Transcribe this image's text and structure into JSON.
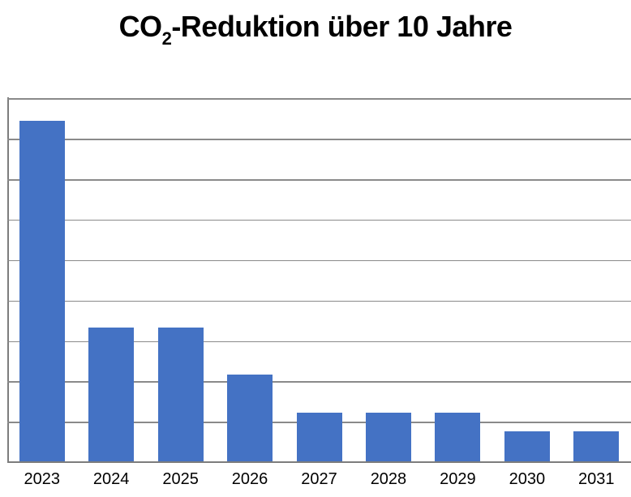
{
  "title": {
    "pre": "CO",
    "sub": "2",
    "post": "-Reduktion über 10 Jahre"
  },
  "chart_data": {
    "type": "bar",
    "title": "CO2-Reduktion über 10 Jahre",
    "categories": [
      "2023",
      "2024",
      "2025",
      "2026",
      "2027",
      "2028",
      "2029",
      "2030",
      "2031"
    ],
    "values": [
      8.42,
      3.31,
      3.31,
      2.14,
      1.2,
      1.2,
      1.2,
      0.74,
      0.74
    ],
    "xlabel": "",
    "ylabel": "",
    "ylim": [
      0,
      9
    ],
    "gridline_step": 1,
    "grid": true,
    "legend": false,
    "y_axis_tick_labels_visible": false,
    "value_note": "values expressed in gridline units; y-axis tick labels are cropped out of the visible image",
    "colors": {
      "bar": "#4472C4",
      "gridline": "#8A8A8A",
      "axis": "#7D7D7D",
      "title_text": "#000000",
      "label_text": "#000000"
    }
  }
}
